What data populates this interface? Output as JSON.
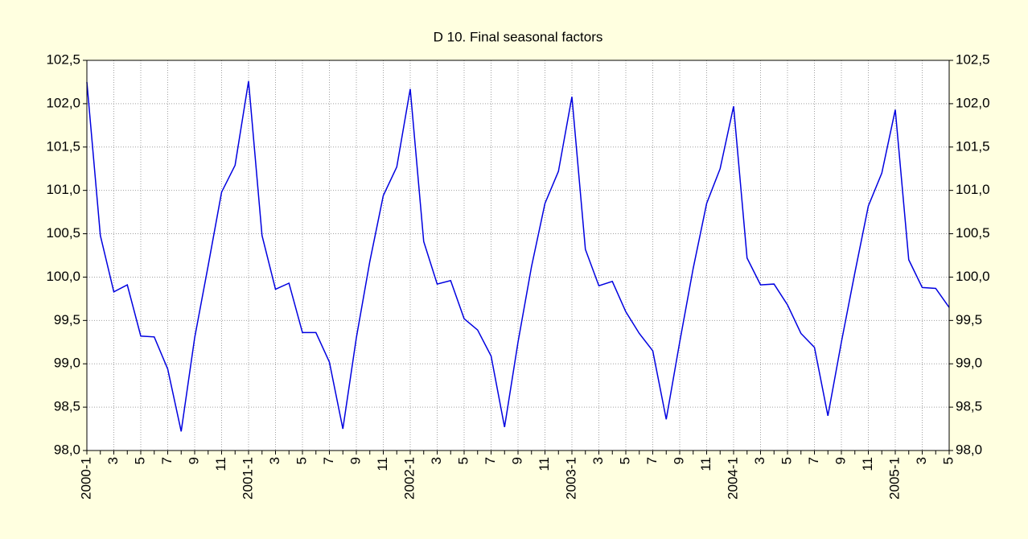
{
  "chart_data": {
    "type": "line",
    "title": "D 10. Final seasonal factors",
    "categories": [
      "2000-1",
      null,
      "3",
      null,
      "5",
      null,
      "7",
      null,
      "9",
      null,
      "11",
      null,
      "2001-1",
      null,
      "3",
      null,
      "5",
      null,
      "7",
      null,
      "9",
      null,
      "11",
      null,
      "2002-1",
      null,
      "3",
      null,
      "5",
      null,
      "7",
      null,
      "9",
      null,
      "11",
      null,
      "2003-1",
      null,
      "3",
      null,
      "5",
      null,
      "7",
      null,
      "9",
      null,
      "11",
      null,
      "2004-1",
      null,
      "3",
      null,
      "5",
      null,
      "7",
      null,
      "9",
      null,
      "11",
      null,
      "2005-1",
      null,
      "3",
      null,
      "5"
    ],
    "series": [
      {
        "color": "#0000e0",
        "values": [
          102.25,
          100.48,
          99.83,
          99.91,
          99.32,
          99.31,
          98.94,
          98.22,
          99.3,
          100.13,
          100.98,
          101.29,
          102.26,
          100.48,
          99.86,
          99.93,
          99.36,
          99.36,
          99.02,
          98.25,
          99.3,
          100.18,
          100.94,
          101.27,
          102.17,
          100.41,
          99.92,
          99.96,
          99.52,
          99.39,
          99.09,
          98.27,
          99.25,
          100.12,
          100.85,
          101.22,
          102.08,
          100.32,
          99.9,
          99.95,
          99.6,
          99.35,
          99.15,
          98.36,
          99.25,
          100.1,
          100.85,
          101.25,
          101.97,
          100.22,
          99.91,
          99.92,
          99.68,
          99.35,
          99.19,
          98.4,
          99.25,
          100.05,
          100.82,
          101.2,
          101.93,
          100.2,
          99.88,
          99.87,
          99.65
        ]
      }
    ],
    "ylim": [
      98,
      102.5
    ],
    "yticks": [
      {
        "value": 98,
        "label": "98,0"
      },
      {
        "value": 98.5,
        "label": "98,5"
      },
      {
        "value": 99,
        "label": "99,0"
      },
      {
        "value": 99.5,
        "label": "99,5"
      },
      {
        "value": 100,
        "label": "100,0"
      },
      {
        "value": 100.5,
        "label": "100,5"
      },
      {
        "value": 101,
        "label": "101,0"
      },
      {
        "value": 101.5,
        "label": "101,5"
      },
      {
        "value": 102,
        "label": "102,0"
      },
      {
        "value": 102.5,
        "label": "102,5"
      }
    ],
    "grid": true
  }
}
